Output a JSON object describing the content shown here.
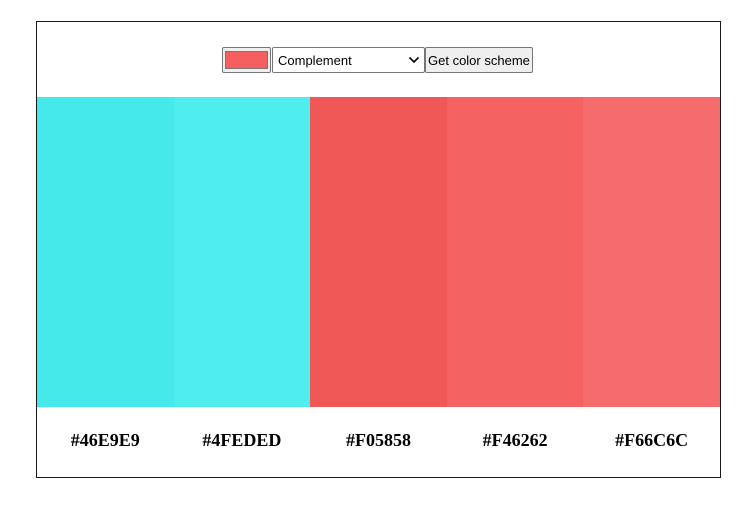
{
  "controls": {
    "seed_color": "#F55F5F",
    "scheme_mode": "Complement",
    "button_label": "Get color scheme"
  },
  "scheme": {
    "colors": [
      {
        "hex": "#46E9E9",
        "label": "#46E9E9"
      },
      {
        "hex": "#4FEDED",
        "label": "#4FEDED"
      },
      {
        "hex": "#F05858",
        "label": "#F05858"
      },
      {
        "hex": "#F46262",
        "label": "#F46262"
      },
      {
        "hex": "#F66C6C",
        "label": "#F66C6C"
      }
    ]
  }
}
